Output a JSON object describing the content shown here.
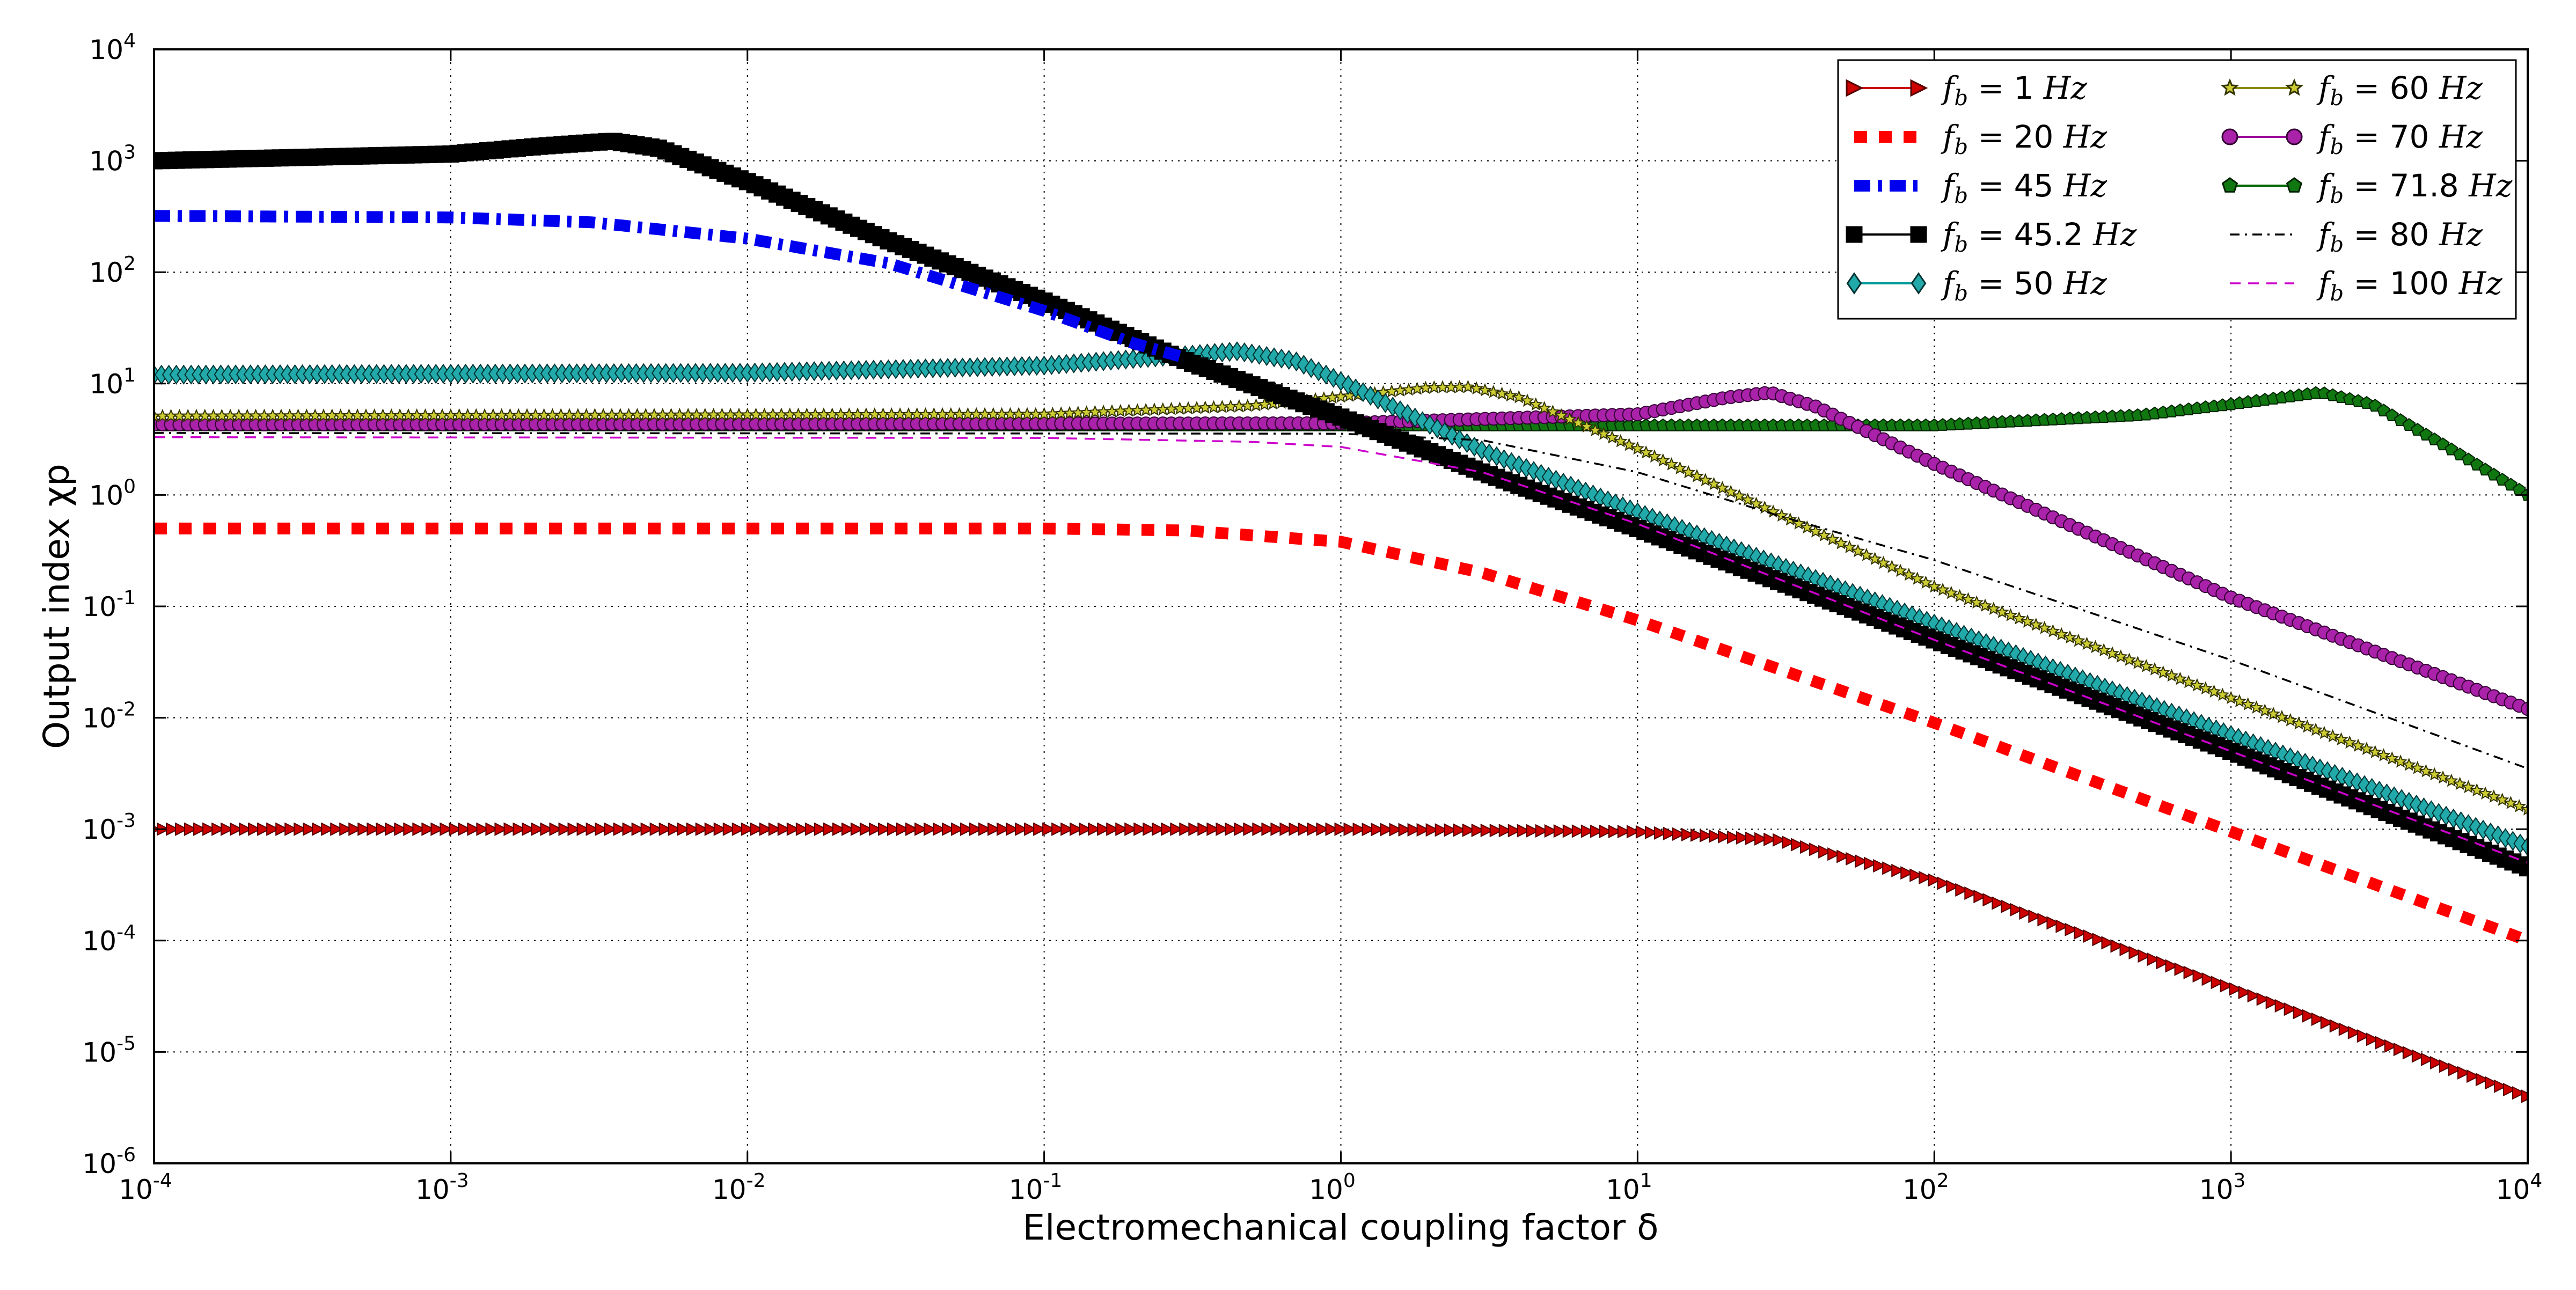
{
  "chart_data": {
    "type": "line",
    "x_scale": "log",
    "y_scale": "log",
    "xlim": [
      0.0001,
      10000
    ],
    "ylim": [
      1e-06,
      10000
    ],
    "grid": true,
    "legend_position": "top-right",
    "xlabel": "Electromechanical coupling factor δ",
    "ylabel": "Output index χp",
    "x_ticks": [
      {
        "base": "10",
        "exp": "-4"
      },
      {
        "base": "10",
        "exp": "-3"
      },
      {
        "base": "10",
        "exp": "-2"
      },
      {
        "base": "10",
        "exp": "-1"
      },
      {
        "base": "10",
        "exp": "0"
      },
      {
        "base": "10",
        "exp": "1"
      },
      {
        "base": "10",
        "exp": "2"
      },
      {
        "base": "10",
        "exp": "3"
      },
      {
        "base": "10",
        "exp": "4"
      }
    ],
    "y_ticks": [
      {
        "base": "10",
        "exp": "-6"
      },
      {
        "base": "10",
        "exp": "-5"
      },
      {
        "base": "10",
        "exp": "-4"
      },
      {
        "base": "10",
        "exp": "-3"
      },
      {
        "base": "10",
        "exp": "-2"
      },
      {
        "base": "10",
        "exp": "-1"
      },
      {
        "base": "10",
        "exp": "0"
      },
      {
        "base": "10",
        "exp": "1"
      },
      {
        "base": "10",
        "exp": "2"
      },
      {
        "base": "10",
        "exp": "3"
      },
      {
        "base": "10",
        "exp": "4"
      }
    ],
    "series": [
      {
        "name": "f_b = 1 Hz",
        "fb_value": "1",
        "color": "#cc0000",
        "marker": "triangle-right",
        "style": "markers",
        "points": [
          [
            0.0001,
            0.001
          ],
          [
            0.01,
            0.001
          ],
          [
            1,
            0.001
          ],
          [
            10,
            0.00095
          ],
          [
            30,
            0.0008
          ],
          [
            100,
            0.00035
          ],
          [
            1000,
            3.8e-05
          ],
          [
            10000,
            4e-06
          ]
        ]
      },
      {
        "name": "f_b = 20 Hz",
        "fb_value": "20",
        "color": "#ff0000",
        "marker": "square",
        "style": "dashed-thick",
        "points": [
          [
            0.0001,
            0.5
          ],
          [
            0.1,
            0.5
          ],
          [
            0.3,
            0.48
          ],
          [
            1,
            0.38
          ],
          [
            3,
            0.2
          ],
          [
            10,
            0.075
          ],
          [
            100,
            0.009
          ],
          [
            1000,
            0.00095
          ],
          [
            10000,
            0.0001
          ]
        ]
      },
      {
        "name": "f_b = 45 Hz",
        "fb_value": "45",
        "color": "#0000ee",
        "marker": "none",
        "style": "dashdot-thick",
        "points": [
          [
            0.0001,
            320
          ],
          [
            0.001,
            310
          ],
          [
            0.003,
            280
          ],
          [
            0.01,
            200
          ],
          [
            0.03,
            120
          ],
          [
            0.1,
            45
          ],
          [
            0.2,
            23
          ],
          [
            0.3,
            17
          ]
        ]
      },
      {
        "name": "f_b = 45.2 Hz",
        "fb_value": "45.2",
        "color": "#000000",
        "marker": "square",
        "style": "markers",
        "points": [
          [
            0.0001,
            1000
          ],
          [
            0.001,
            1150
          ],
          [
            0.002,
            1350
          ],
          [
            0.0035,
            1500
          ],
          [
            0.005,
            1300
          ],
          [
            0.01,
            650
          ],
          [
            0.03,
            190
          ],
          [
            0.1,
            55
          ],
          [
            0.3,
            16
          ],
          [
            1,
            5
          ],
          [
            3,
            1.6
          ],
          [
            10,
            0.5
          ],
          [
            100,
            0.05
          ],
          [
            1000,
            0.005
          ],
          [
            10000,
            0.00045
          ]
        ]
      },
      {
        "name": "f_b = 50 Hz",
        "fb_value": "50",
        "color": "#009999",
        "marker": "diamond",
        "style": "markers",
        "points": [
          [
            0.0001,
            12
          ],
          [
            0.01,
            12.5
          ],
          [
            0.1,
            14.5
          ],
          [
            0.3,
            18
          ],
          [
            0.45,
            19.5
          ],
          [
            0.7,
            16
          ],
          [
            1,
            10.5
          ],
          [
            3,
            2.5
          ],
          [
            10,
            0.7
          ],
          [
            100,
            0.07
          ],
          [
            1000,
            0.007
          ],
          [
            10000,
            0.0007
          ]
        ]
      },
      {
        "name": "f_b = 60 Hz",
        "fb_value": "60",
        "color": "#888800",
        "marker": "star",
        "style": "markers",
        "points": [
          [
            0.0001,
            5.1
          ],
          [
            0.1,
            5.3
          ],
          [
            0.5,
            6.3
          ],
          [
            1,
            7.6
          ],
          [
            2,
            9.2
          ],
          [
            2.7,
            9.3
          ],
          [
            4,
            7.5
          ],
          [
            10,
            2.6
          ],
          [
            100,
            0.15
          ],
          [
            1000,
            0.015
          ],
          [
            10000,
            0.0015
          ]
        ]
      },
      {
        "name": "f_b = 70 Hz",
        "fb_value": "70",
        "color": "#990099",
        "marker": "circle",
        "style": "markers",
        "points": [
          [
            0.0001,
            4.3
          ],
          [
            1,
            4.4
          ],
          [
            10,
            5.3
          ],
          [
            20,
            7.5
          ],
          [
            28,
            8.3
          ],
          [
            40,
            6.2
          ],
          [
            100,
            1.9
          ],
          [
            1000,
            0.12
          ],
          [
            10000,
            0.012
          ]
        ]
      },
      {
        "name": "f_b = 71.8 Hz",
        "fb_value": "71.8",
        "color": "#006600",
        "marker": "pentagon",
        "style": "markers",
        "points": [
          [
            0.0001,
            4.2
          ],
          [
            100,
            4.2
          ],
          [
            500,
            5.2
          ],
          [
            1000,
            6.5
          ],
          [
            2000,
            8.3
          ],
          [
            3000,
            6.5
          ],
          [
            5000,
            3
          ],
          [
            10000,
            1
          ]
        ]
      },
      {
        "name": "f_b = 80 Hz",
        "fb_value": "80",
        "color": "#000000",
        "marker": "none",
        "style": "dashdot-thin",
        "points": [
          [
            0.0001,
            3.6
          ],
          [
            1,
            3.55
          ],
          [
            3,
            3.1
          ],
          [
            10,
            1.6
          ],
          [
            30,
            0.65
          ],
          [
            100,
            0.26
          ],
          [
            1000,
            0.033
          ],
          [
            10000,
            0.0035
          ]
        ]
      },
      {
        "name": "f_b = 100 Hz",
        "fb_value": "100",
        "color": "#cc00cc",
        "marker": "none",
        "style": "dashed-thin",
        "points": [
          [
            0.0001,
            3.3
          ],
          [
            0.1,
            3.25
          ],
          [
            0.5,
            3.0
          ],
          [
            1,
            2.7
          ],
          [
            3,
            1.6
          ],
          [
            10,
            0.55
          ],
          [
            100,
            0.05
          ],
          [
            1000,
            0.005
          ],
          [
            10000,
            0.0005
          ]
        ]
      }
    ]
  }
}
